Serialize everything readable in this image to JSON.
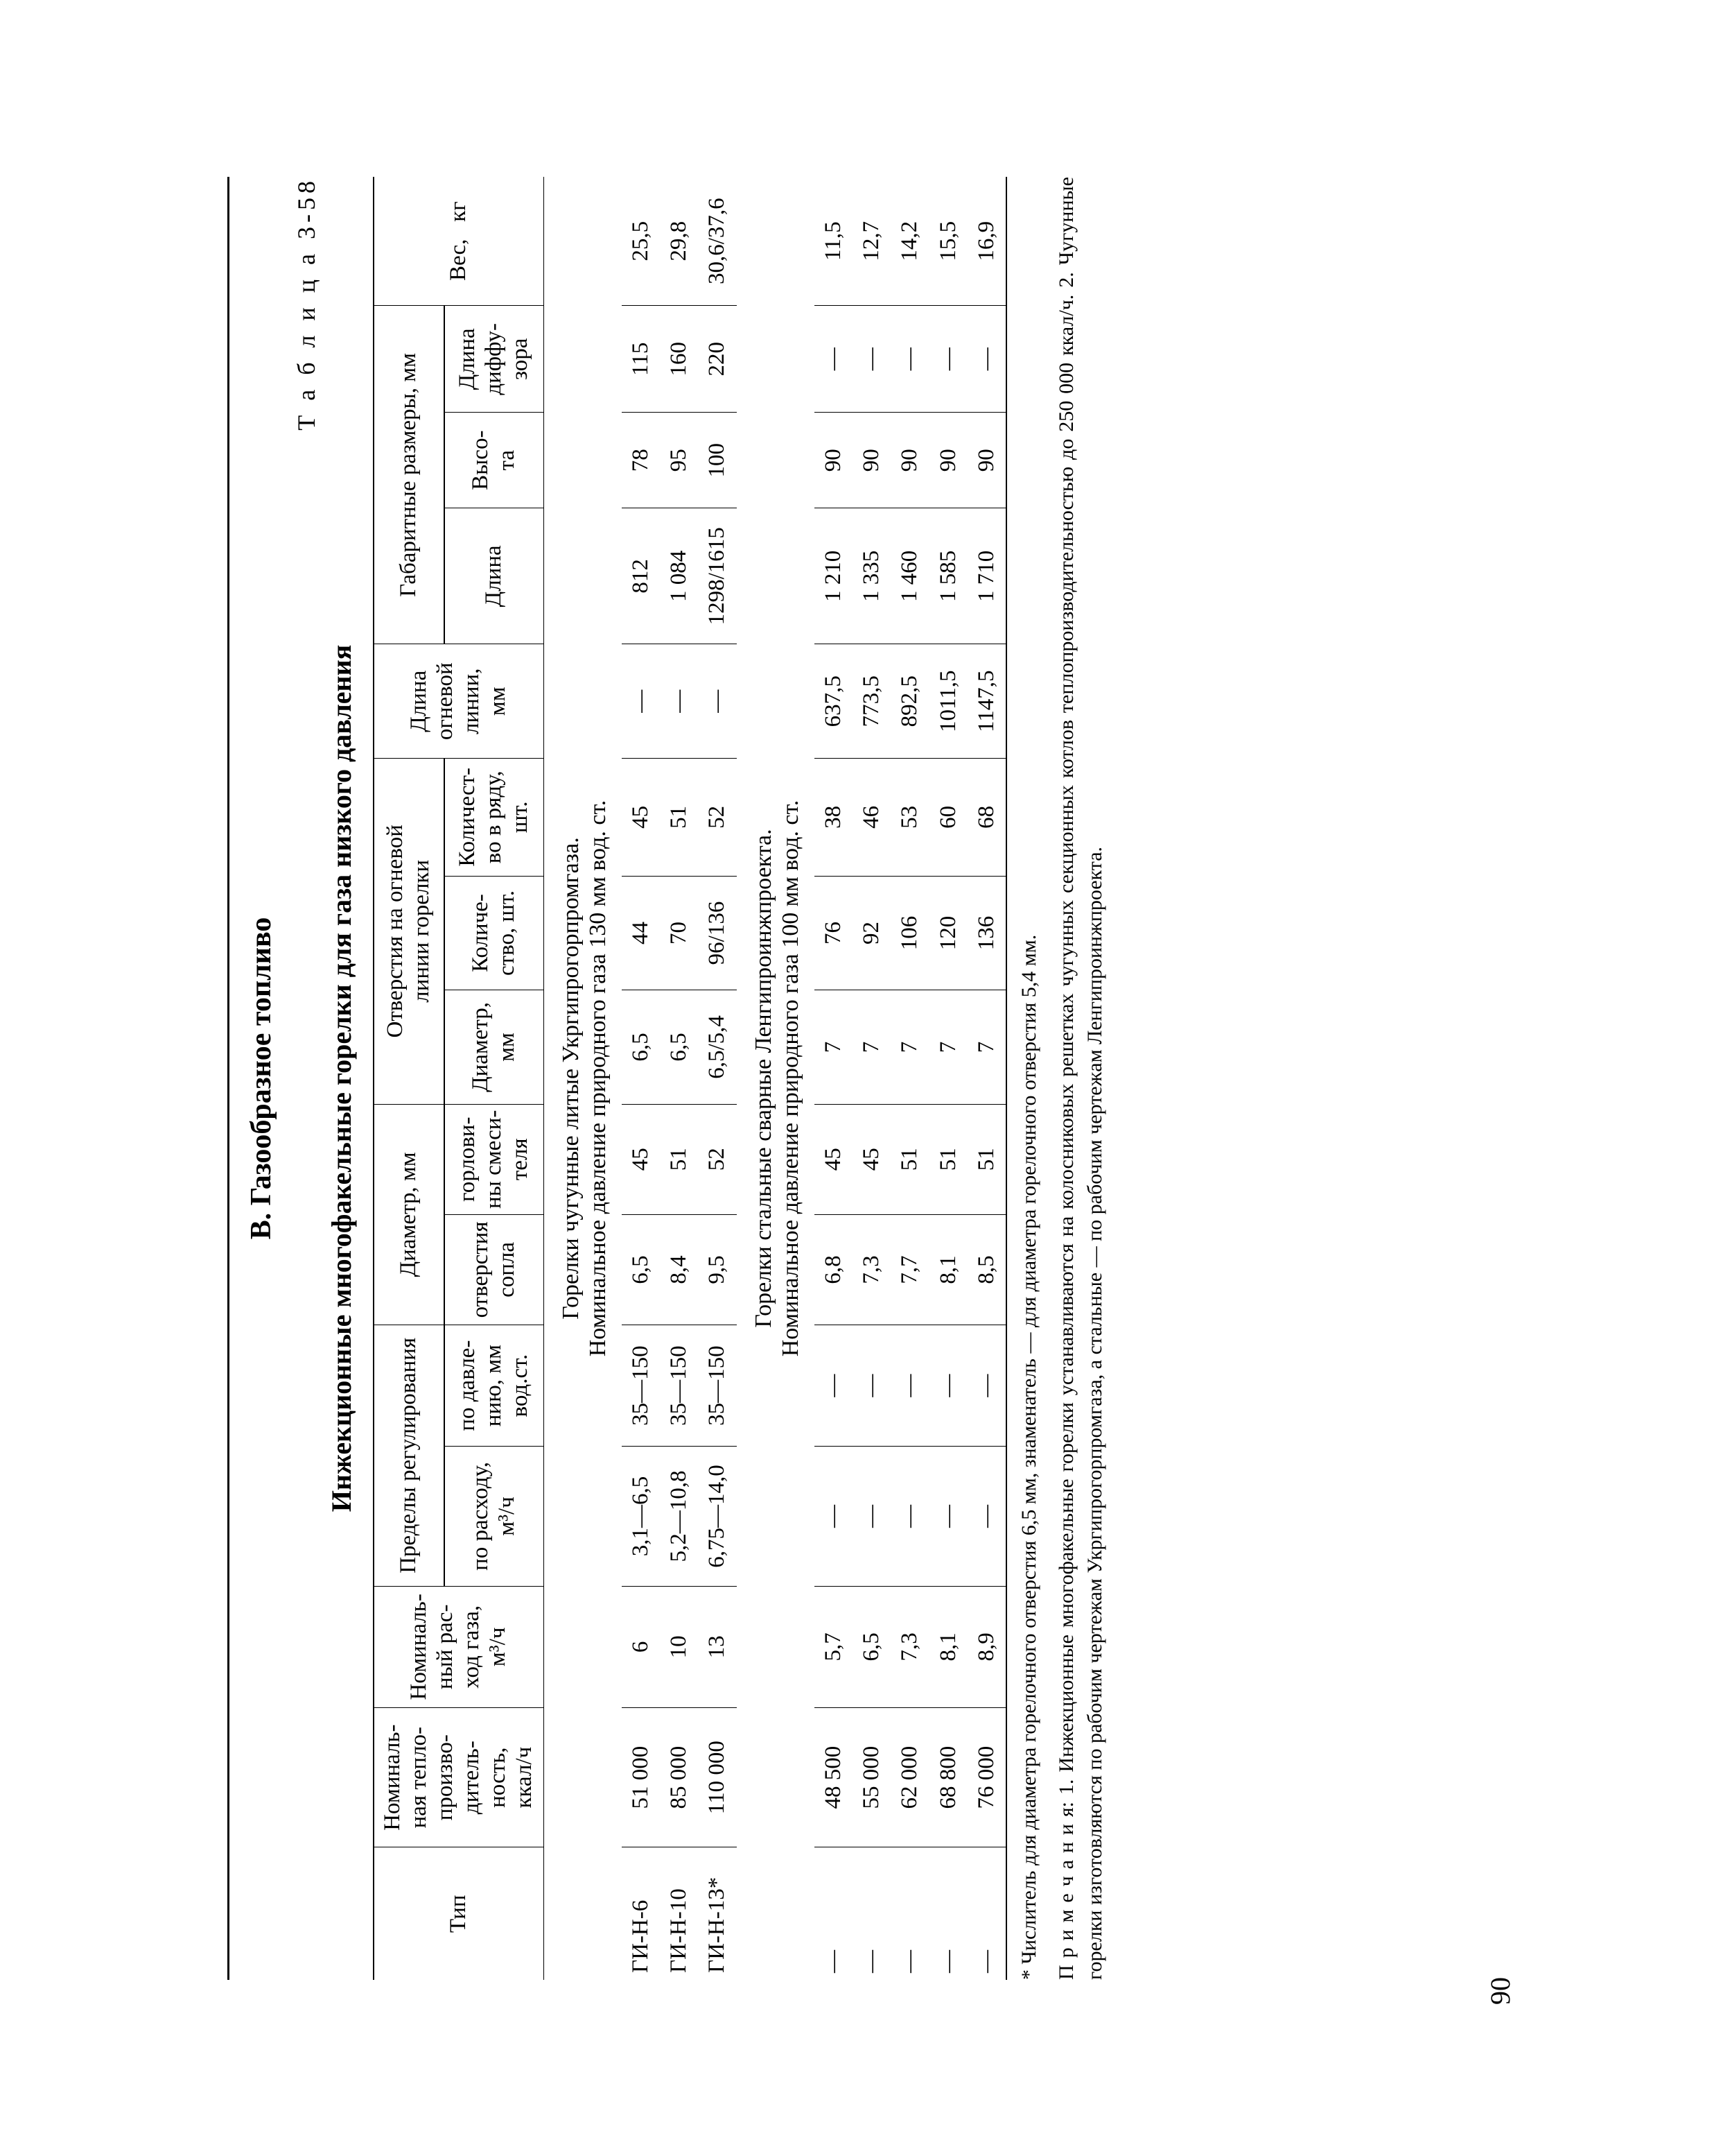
{
  "page_number": "90",
  "section_title": "В. Газообразное топливо",
  "table_label": "Т а б л и ц а   3-58",
  "table_title": "Инжекционные многофакельные горелки для газа низкого давления",
  "columns": {
    "c1": "Тип",
    "c2": "Номиналь-\nная тепло-\nпроизво-\nдитель-\nность,\nккал/ч",
    "c3": "Номиналь-\nный рас-\nход газа,\nм³/ч",
    "c4_group": "Пределы регулирования",
    "c4a": "по расходу,\nм³/ч",
    "c4b": "по давле-\nнию, мм\nвод.ст.",
    "c5_group": "Диаметр, мм",
    "c5a": "отверстия\nсопла",
    "c5b": "горлови-\nны смеси-\nтеля",
    "c6_group": "Отверстия на огневой\nлинии горелки",
    "c6a": "Диаметр,\nмм",
    "c6b": "Количе-\nство, шт.",
    "c6c": "Количест-\nво в ряду,\nшт.",
    "c7": "Длина\nогневой\nлинии,\nмм",
    "c8_group": "Габаритные размеры, мм",
    "c8a": "Длина",
    "c8b": "Высо-\nта",
    "c8c": "Длина\nдиффу-\nзора",
    "c9": "Вес,   кг"
  },
  "groups": [
    {
      "heading_line1": "Горелки чугунные литые Укргипрогорпромгаза.",
      "heading_line2": "Номинальное давление природного газа 130 мм вод. ст.",
      "rows": [
        {
          "type": "ГИ-Н-6",
          "q": "51 000",
          "g": "6",
          "r1": "3,1—6,5",
          "r2": "35—150",
          "d1": "6,5",
          "d2": "45",
          "h1": "6,5",
          "h2": "44",
          "h3": "45",
          "L": "—",
          "a": "812",
          "b": "78",
          "c": "115",
          "w": "25,5"
        },
        {
          "type": "ГИ-Н-10",
          "q": "85 000",
          "g": "10",
          "r1": "5,2—10,8",
          "r2": "35—150",
          "d1": "8,4",
          "d2": "51",
          "h1": "6,5",
          "h2": "70",
          "h3": "51",
          "L": "—",
          "a": "1 084",
          "b": "95",
          "c": "160",
          "w": "29,8"
        },
        {
          "type": "ГИ-Н-13*",
          "q": "110 000",
          "g": "13",
          "r1": "6,75—14,0",
          "r2": "35—150",
          "d1": "9,5",
          "d2": "52",
          "h1": "6,5/5,4",
          "h2": "96/136",
          "h3": "52",
          "L": "—",
          "a": "1298/1615",
          "b": "100",
          "c": "220",
          "w": "30,6/37,6"
        }
      ]
    },
    {
      "heading_line1": "Горелки стальные сварные Ленгипроинжпроекта.",
      "heading_line2": "Номинальное давление природного газа 100 мм вод. ст.",
      "rows": [
        {
          "type": "—",
          "q": "48 500",
          "g": "5,7",
          "r1": "—",
          "r2": "—",
          "d1": "6,8",
          "d2": "45",
          "h1": "7",
          "h2": "76",
          "h3": "38",
          "L": "637,5",
          "a": "1 210",
          "b": "90",
          "c": "—",
          "w": "11,5"
        },
        {
          "type": "—",
          "q": "55 000",
          "g": "6,5",
          "r1": "—",
          "r2": "—",
          "d1": "7,3",
          "d2": "45",
          "h1": "7",
          "h2": "92",
          "h3": "46",
          "L": "773,5",
          "a": "1 335",
          "b": "90",
          "c": "—",
          "w": "12,7"
        },
        {
          "type": "—",
          "q": "62 000",
          "g": "7,3",
          "r1": "—",
          "r2": "—",
          "d1": "7,7",
          "d2": "51",
          "h1": "7",
          "h2": "106",
          "h3": "53",
          "L": "892,5",
          "a": "1 460",
          "b": "90",
          "c": "—",
          "w": "14,2"
        },
        {
          "type": "—",
          "q": "68 800",
          "g": "8,1",
          "r1": "—",
          "r2": "—",
          "d1": "8,1",
          "d2": "51",
          "h1": "7",
          "h2": "120",
          "h3": "60",
          "L": "1011,5",
          "a": "1 585",
          "b": "90",
          "c": "—",
          "w": "15,5"
        },
        {
          "type": "—",
          "q": "76 000",
          "g": "8,9",
          "r1": "—",
          "r2": "—",
          "d1": "8,5",
          "d2": "51",
          "h1": "7",
          "h2": "136",
          "h3": "68",
          "L": "1147,5",
          "a": "1 710",
          "b": "90",
          "c": "—",
          "w": "16,9"
        }
      ]
    }
  ],
  "footnote": "* Числитель для диаметра горелочного отверстия 6,5 мм, знаменатель — для диаметра горелочного отверстия 5,4 мм.",
  "notes": "П р и м е ч а н и я: 1. Инжекционные многофакельные горелки устанавливаются на колосниковых решетках чугунных секционных котлов теплопроизводительностью до 250 000 ккал/ч. 2. Чугунные горелки изготовляются по рабочим чертежам Укргипрогорпромгаза, а стальные — по рабочим чертежам Ленгипроинжпроекта."
}
